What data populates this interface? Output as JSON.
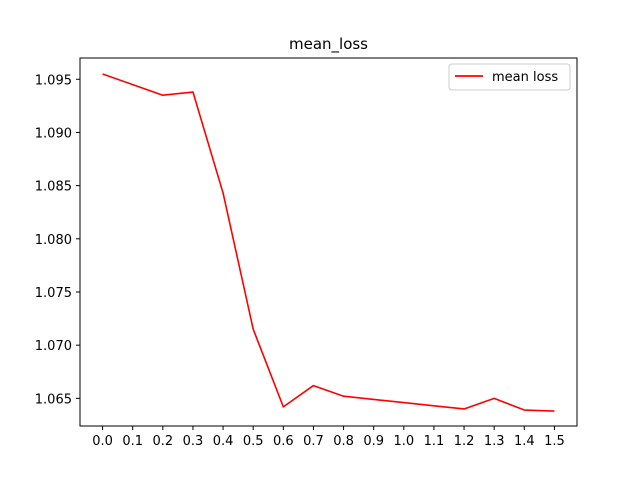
{
  "chart_data": {
    "type": "line",
    "title": "mean_loss",
    "xlabel": "",
    "ylabel": "",
    "x": [
      0.0,
      0.1,
      0.2,
      0.3,
      0.4,
      0.5,
      0.6,
      0.7,
      0.8,
      0.9,
      1.0,
      1.1,
      1.2,
      1.3,
      1.4,
      1.5
    ],
    "series": [
      {
        "name": "mean loss",
        "color": "#ff0000",
        "values": [
          1.0955,
          1.0945,
          1.0935,
          1.0938,
          1.0843,
          1.0715,
          1.0642,
          1.0662,
          1.0652,
          1.0649,
          1.0646,
          1.0643,
          1.064,
          1.065,
          1.0639,
          1.0638
        ]
      }
    ],
    "xlim": [
      -0.075,
      1.575
    ],
    "ylim": [
      1.0624,
      1.097
    ],
    "xticks": [
      "0.0",
      "0.1",
      "0.2",
      "0.3",
      "0.4",
      "0.5",
      "0.6",
      "0.7",
      "0.8",
      "0.9",
      "1.0",
      "1.1",
      "1.2",
      "1.3",
      "1.4",
      "1.5"
    ],
    "yticks": [
      "1.065",
      "1.070",
      "1.075",
      "1.080",
      "1.085",
      "1.090",
      "1.095"
    ],
    "grid": false,
    "legend_position": "top-right"
  }
}
